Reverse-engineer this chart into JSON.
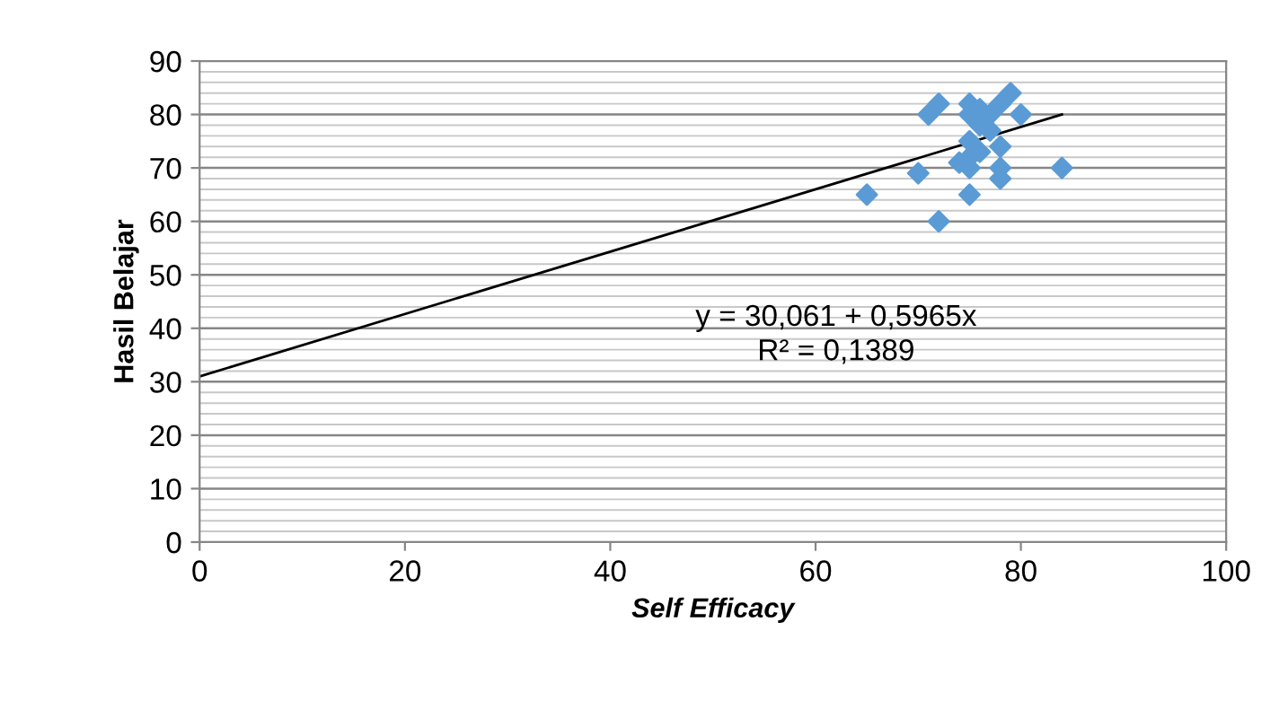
{
  "chart_data": {
    "type": "scatter",
    "xlabel": "Self Efficacy",
    "ylabel": "Hasil Belajar",
    "annotations": [
      "y = 30,061 + 0,5965x\nR² = 0,1389"
    ],
    "series": [
      {
        "color": "#5b9bd5",
        "marker": "diamond",
        "x": [
          65,
          70,
          71,
          72,
          72,
          75,
          74,
          75,
          75,
          75,
          75,
          76,
          77,
          78,
          78,
          78,
          78,
          79,
          80,
          84,
          76,
          77,
          75,
          76
        ],
        "values": [
          65,
          69,
          80,
          82,
          60,
          65,
          71,
          70,
          72,
          82,
          80,
          78,
          80,
          82,
          70,
          68,
          74,
          84,
          80,
          70,
          73,
          77,
          75,
          81
        ]
      },
      {
        "type": "line",
        "color": "#000000",
        "marker": "none",
        "x": [
          0,
          84
        ],
        "values": [
          31,
          80
        ]
      }
    ],
    "xlim": [
      0,
      100
    ],
    "xticks": [
      0,
      20,
      40,
      60,
      80,
      100
    ],
    "ylim": [
      0,
      90
    ],
    "yticks": [
      0,
      10,
      20,
      30,
      40,
      50,
      60,
      70,
      80,
      90
    ],
    "grid": "y",
    "legend": false
  }
}
